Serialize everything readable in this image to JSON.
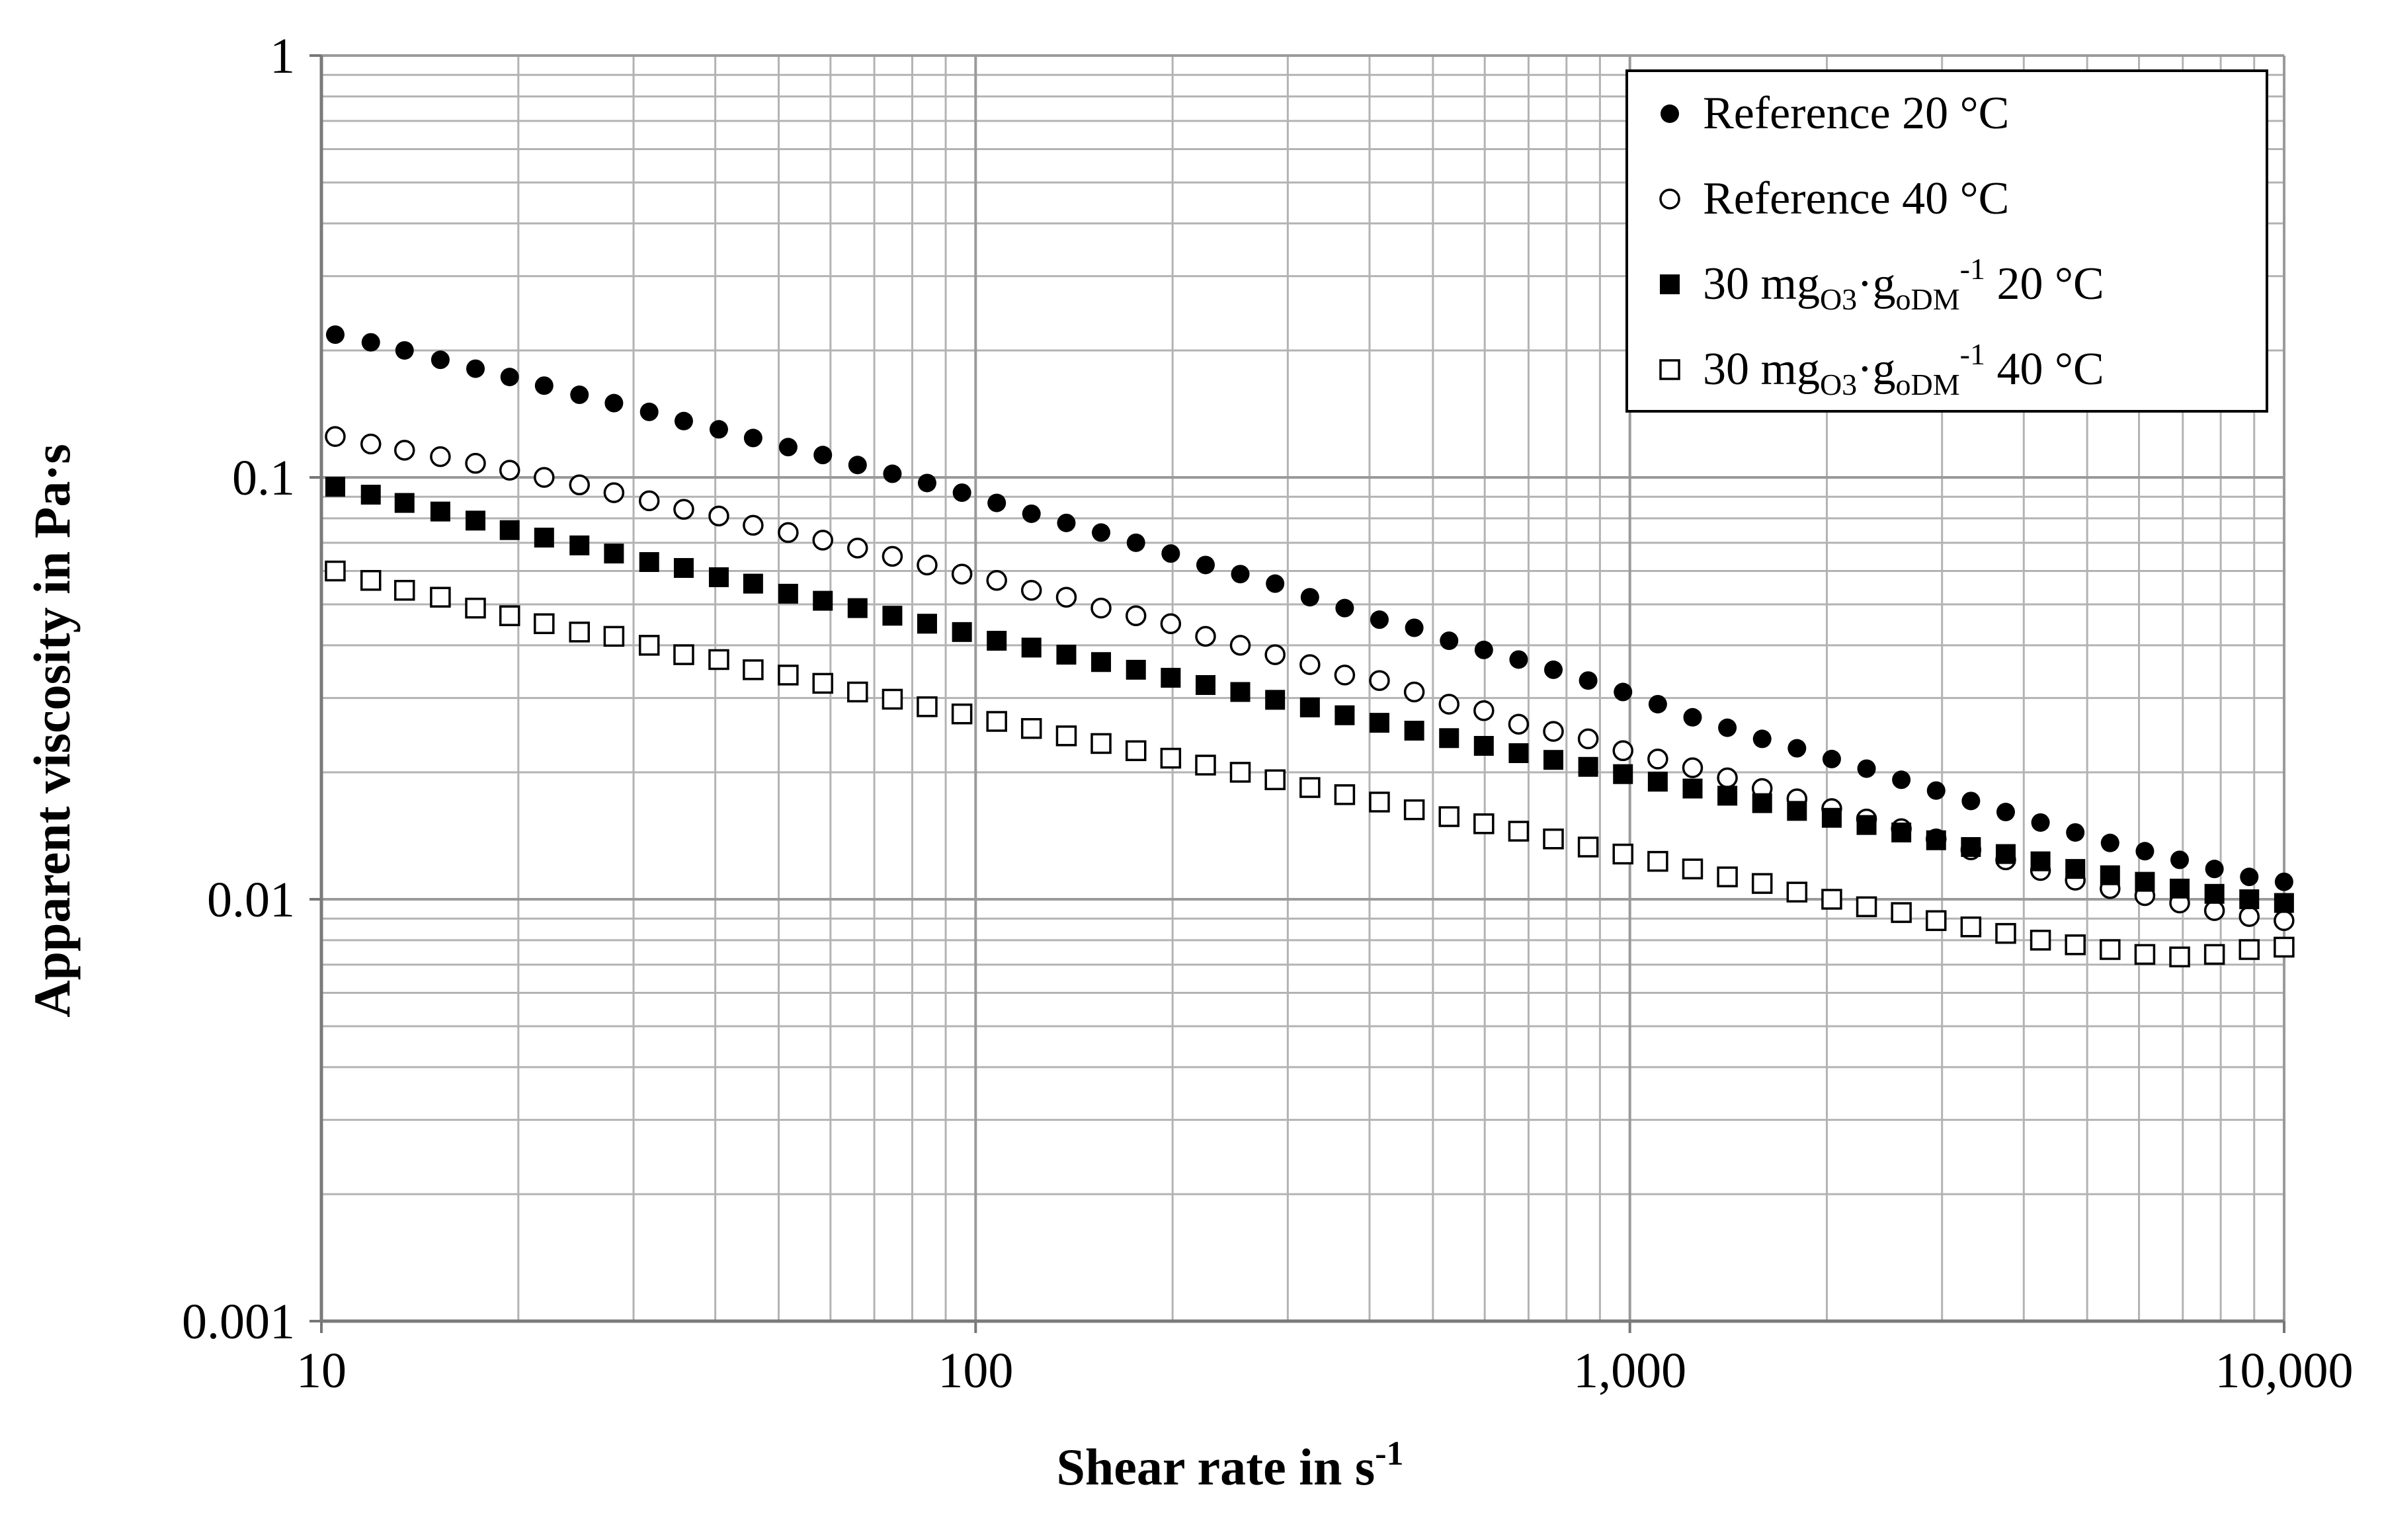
{
  "chart_data": {
    "type": "scatter",
    "xscale": "log",
    "yscale": "log",
    "xlim": [
      10,
      10000
    ],
    "ylim": [
      0.001,
      1
    ],
    "grid": true,
    "xlabel": "Shear rate in s",
    "xlabel_sup": "-1",
    "ylabel": "Apparent viscosity in Pa·s",
    "xticks": [
      {
        "value": 10,
        "label": "10"
      },
      {
        "value": 100,
        "label": "100"
      },
      {
        "value": 1000,
        "label": "1,000"
      },
      {
        "value": 10000,
        "label": "10,000"
      }
    ],
    "yticks": [
      {
        "value": 1,
        "label": "1"
      },
      {
        "value": 0.1,
        "label": "0.1"
      },
      {
        "value": 0.01,
        "label": "0.01"
      },
      {
        "value": 0.001,
        "label": "0.001"
      }
    ],
    "legend_position": "top-right",
    "x": [
      10.5,
      11.9,
      13.4,
      15.2,
      17.2,
      19.4,
      21.9,
      24.8,
      28.0,
      31.7,
      35.8,
      40.5,
      45.7,
      51.7,
      58.4,
      66.0,
      74.6,
      84.3,
      95.3,
      107.7,
      121.7,
      137.6,
      155.5,
      175.8,
      198.7,
      224.6,
      253.8,
      286.9,
      324.3,
      366.5,
      414.2,
      468.2,
      529.2,
      598.1,
      676.0,
      764.0,
      863.5,
      976.0,
      1103.2,
      1246.9,
      1409.3,
      1592.9,
      1800.4,
      2034.9,
      2300.0,
      2599.5,
      2938.2,
      3320.9,
      3753.5,
      4242.4,
      4795.1,
      5419.6,
      6125.6,
      6923.5,
      7825.4,
      8844.7,
      9996.8
    ],
    "series": [
      {
        "name": "Reference 20 °C",
        "legend_prefix": "Reference 20 °C",
        "marker": "filled-circle",
        "values": [
          0.218,
          0.209,
          0.2,
          0.19,
          0.181,
          0.173,
          0.165,
          0.157,
          0.15,
          0.143,
          0.136,
          0.13,
          0.124,
          0.118,
          0.113,
          0.107,
          0.102,
          0.097,
          0.092,
          0.087,
          0.082,
          0.078,
          0.074,
          0.07,
          0.066,
          0.062,
          0.059,
          0.056,
          0.052,
          0.049,
          0.046,
          0.044,
          0.041,
          0.039,
          0.037,
          0.035,
          0.033,
          0.031,
          0.029,
          0.027,
          0.0255,
          0.024,
          0.0228,
          0.0215,
          0.0204,
          0.0192,
          0.0181,
          0.0171,
          0.0161,
          0.0152,
          0.0144,
          0.0136,
          0.013,
          0.0124,
          0.0118,
          0.0113,
          0.011
        ]
      },
      {
        "name": "Reference 40 °C",
        "legend_prefix": "Reference 40 °C",
        "marker": "open-circle",
        "values": [
          0.125,
          0.12,
          0.116,
          0.112,
          0.108,
          0.104,
          0.1,
          0.096,
          0.092,
          0.088,
          0.084,
          0.081,
          0.077,
          0.074,
          0.071,
          0.068,
          0.065,
          0.062,
          0.059,
          0.057,
          0.054,
          0.052,
          0.049,
          0.047,
          0.045,
          0.042,
          0.04,
          0.038,
          0.036,
          0.034,
          0.033,
          0.031,
          0.029,
          0.028,
          0.026,
          0.025,
          0.024,
          0.0225,
          0.0215,
          0.0205,
          0.0194,
          0.0183,
          0.0173,
          0.0164,
          0.0155,
          0.0147,
          0.0139,
          0.0131,
          0.0124,
          0.0117,
          0.0111,
          0.0106,
          0.0102,
          0.0098,
          0.0094,
          0.0091,
          0.0089
        ]
      },
      {
        "name": "30 mgO3·goDM-1 20 °C",
        "legend_prefix": "30 mg",
        "legend_sub1": "O3",
        "legend_mid": "·g",
        "legend_sub2": "oDM",
        "legend_sup": "-1",
        "legend_suffix": " 20 °C",
        "marker": "filled-square",
        "values": [
          0.095,
          0.091,
          0.087,
          0.083,
          0.079,
          0.075,
          0.072,
          0.069,
          0.066,
          0.063,
          0.061,
          0.058,
          0.056,
          0.053,
          0.051,
          0.049,
          0.047,
          0.045,
          0.043,
          0.041,
          0.0395,
          0.038,
          0.0365,
          0.035,
          0.0335,
          0.0322,
          0.031,
          0.0297,
          0.0285,
          0.0273,
          0.0262,
          0.0251,
          0.0241,
          0.0231,
          0.0222,
          0.0214,
          0.0206,
          0.0198,
          0.019,
          0.0183,
          0.0176,
          0.0169,
          0.0162,
          0.0156,
          0.015,
          0.0144,
          0.0138,
          0.0133,
          0.0128,
          0.0123,
          0.0118,
          0.0114,
          0.011,
          0.0106,
          0.0103,
          0.01,
          0.0098
        ]
      },
      {
        "name": "30 mgO3·goDM-1 40 °C",
        "legend_prefix": "30 mg",
        "legend_sub1": "O3",
        "legend_mid": "·g",
        "legend_sub2": "oDM",
        "legend_sup": "-1",
        "legend_suffix": " 40 °C",
        "marker": "open-square",
        "values": [
          0.06,
          0.057,
          0.054,
          0.052,
          0.049,
          0.047,
          0.045,
          0.043,
          0.042,
          0.04,
          0.038,
          0.037,
          0.035,
          0.034,
          0.0325,
          0.031,
          0.0298,
          0.0286,
          0.0275,
          0.0264,
          0.0254,
          0.0244,
          0.0234,
          0.0225,
          0.0216,
          0.0208,
          0.02,
          0.0192,
          0.0184,
          0.0177,
          0.017,
          0.0163,
          0.0157,
          0.0151,
          0.0145,
          0.0139,
          0.0133,
          0.0128,
          0.0123,
          0.0118,
          0.0113,
          0.0109,
          0.0104,
          0.01,
          0.0096,
          0.0093,
          0.0089,
          0.0086,
          0.0083,
          0.008,
          0.0078,
          0.0076,
          0.0074,
          0.0073,
          0.0074,
          0.0076,
          0.0077
        ]
      }
    ]
  }
}
